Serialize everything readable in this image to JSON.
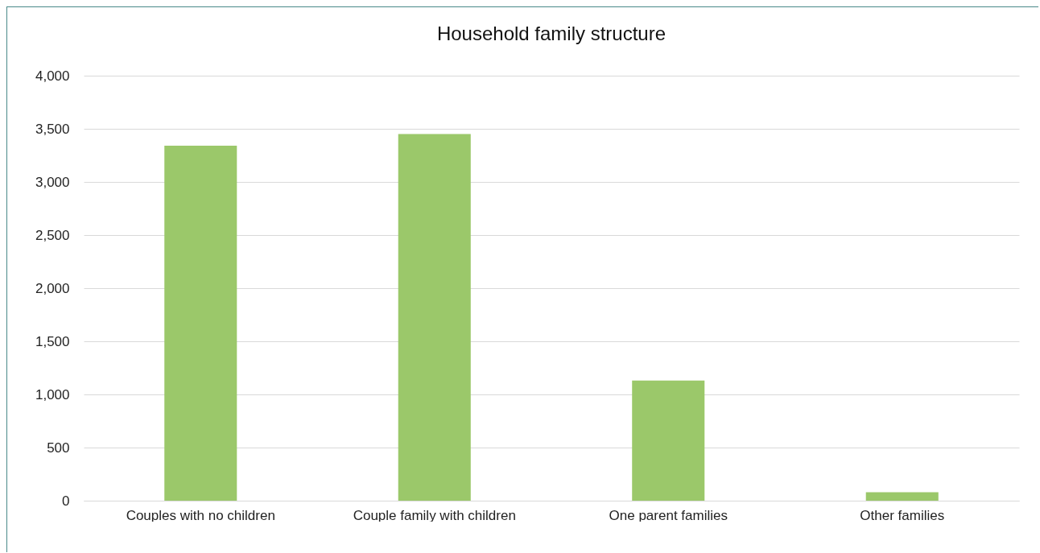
{
  "chart_data": {
    "type": "bar",
    "title": "Household family structure",
    "categories": [
      "Couples with no children",
      "Couple family with children",
      "One parent families",
      "Other families"
    ],
    "values": [
      3340,
      3450,
      1130,
      80
    ],
    "color": "#9bc86a",
    "ylim": [
      0,
      4000
    ],
    "yticks": [
      {
        "value": 0,
        "label": "0"
      },
      {
        "value": 500,
        "label": "500"
      },
      {
        "value": 1000,
        "label": "1,000"
      },
      {
        "value": 1500,
        "label": "1,500"
      },
      {
        "value": 2000,
        "label": "2,000"
      },
      {
        "value": 2500,
        "label": "2,500"
      },
      {
        "value": 3000,
        "label": "3,000"
      },
      {
        "value": 3500,
        "label": "3,500"
      },
      {
        "value": 4000,
        "label": "4,000"
      }
    ],
    "grid": "y"
  }
}
